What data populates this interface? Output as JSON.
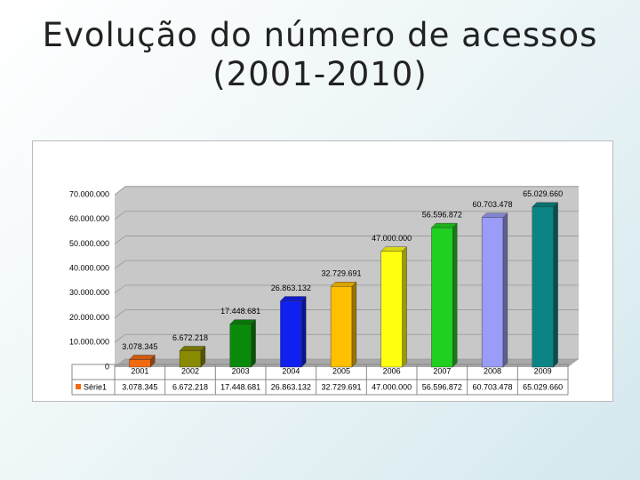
{
  "title": "Evolução do número de acessos (2001-2010)",
  "chart_data": {
    "type": "bar3d",
    "categories": [
      "2001",
      "2002",
      "2003",
      "2004",
      "2005",
      "2006",
      "2007",
      "2008",
      "2009"
    ],
    "series": [
      {
        "name": "Série1",
        "values": [
          3078345,
          6672218,
          17448681,
          26863132,
          32729691,
          47000000,
          56596872,
          60703478,
          65029660
        ],
        "value_labels": [
          "3.078.345",
          "6.672.218",
          "17.448.681",
          "26.863.132",
          "32.729.691",
          "47.000.000",
          "56.596.872",
          "60.703.478",
          "65.029.660"
        ]
      }
    ],
    "colors": [
      "#f26a10",
      "#8a8a00",
      "#0a8a0a",
      "#1020f0",
      "#ffc000",
      "#ffff10",
      "#20d020",
      "#9a9cf8",
      "#0a8484"
    ],
    "ylim": [
      0,
      70000000
    ],
    "yticks": [
      0,
      {
        "value": 10000000,
        "label": "10.000.000"
      },
      {
        "value": 20000000,
        "label": "20.000.000"
      },
      {
        "value": 30000000,
        "label": "30.000.000"
      },
      {
        "value": 40000000,
        "label": "40.000.000"
      },
      {
        "value": 50000000,
        "label": "50.000.000"
      },
      {
        "value": 60000000,
        "label": "60.000.000"
      },
      {
        "value": 70000000,
        "label": "70.000.000"
      }
    ],
    "grid": true,
    "data_table": true
  }
}
